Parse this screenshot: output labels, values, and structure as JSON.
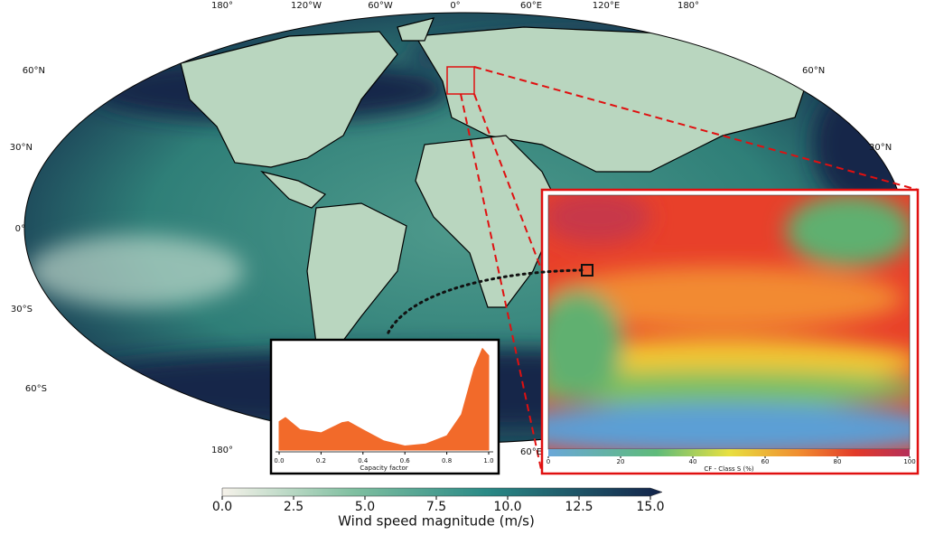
{
  "map": {
    "lon_labels_top": [
      "180°",
      "120°W",
      "60°W",
      "0°",
      "60°E",
      "120°E",
      "180°"
    ],
    "lat_labels_left": [
      "60°N",
      "30°N",
      "0°",
      "30°S",
      "60°S"
    ],
    "lat_labels_right": [
      "60°N",
      "30°N"
    ],
    "lon_labels_bottom": [
      "180°",
      "60°E"
    ]
  },
  "colorbar": {
    "label": "Wind speed magnitude (m/s)",
    "lim": [
      0,
      15
    ],
    "ticks": [
      {
        "value": 0,
        "label": "0.0"
      },
      {
        "value": 2.5,
        "label": "2.5"
      },
      {
        "value": 5,
        "label": "5.0"
      },
      {
        "value": 7.5,
        "label": "7.5"
      },
      {
        "value": 10,
        "label": "10.0"
      },
      {
        "value": 12.5,
        "label": "12.5"
      },
      {
        "value": 15,
        "label": "15.0"
      }
    ]
  },
  "density_inset": {
    "type": "area",
    "xlabel": "Capacity factor",
    "xlim": [
      0,
      1
    ],
    "xticks": [
      {
        "value": 0,
        "label": "0.0"
      },
      {
        "value": 0.2,
        "label": "0.2"
      },
      {
        "value": 0.4,
        "label": "0.4"
      },
      {
        "value": 0.6,
        "label": "0.6"
      },
      {
        "value": 0.8,
        "label": "0.8"
      },
      {
        "value": 1,
        "label": "1.0"
      }
    ],
    "ylim": [
      0,
      1.05
    ],
    "color": "#f26a2a",
    "x": [
      0,
      0.03,
      0.1,
      0.2,
      0.3,
      0.33,
      0.4,
      0.5,
      0.6,
      0.7,
      0.8,
      0.87,
      0.93,
      0.97,
      1.0
    ],
    "values": [
      0.28,
      0.32,
      0.2,
      0.17,
      0.27,
      0.28,
      0.2,
      0.09,
      0.04,
      0.06,
      0.14,
      0.35,
      0.8,
      1.0,
      0.93
    ]
  },
  "cf_inset": {
    "colorbar_label": "CF - Class S (%)",
    "lim": [
      0,
      100
    ],
    "ticks": [
      0,
      20,
      40,
      60,
      80,
      100
    ]
  }
}
